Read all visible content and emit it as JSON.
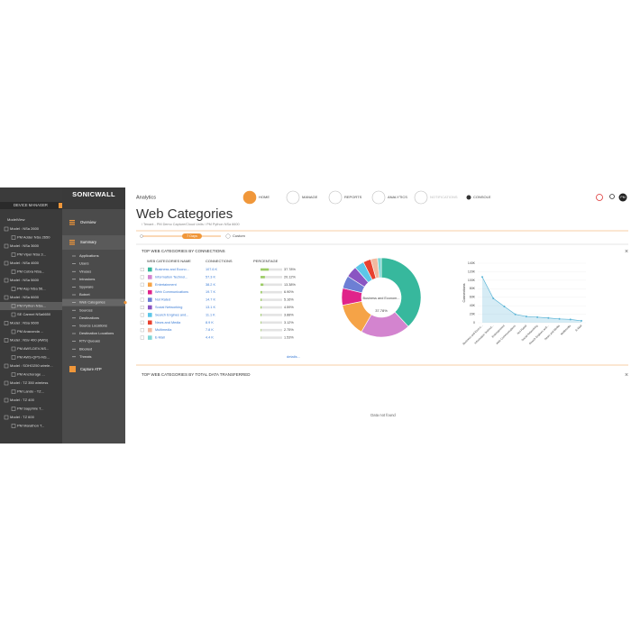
{
  "sidebar": {
    "header": "DEVICE MANAGER",
    "root": "ModelView",
    "devices": [
      "Model : NSa 2600",
      "PM Adder NSa 2650",
      "Model : NSa 3600",
      "PM Viper NSa 3...",
      "Model : NSa 4600",
      "PM Cobra NSa...",
      "Model : NSa 5600",
      "PM Asp NSa 56...",
      "Model : NSa 6600",
      "PM Python NSa...",
      "SE Carmel NSa6650",
      "Model : NSa 9600",
      "PM Anaconda ...",
      "Model : NSv 400 (AWS)",
      "PM AWS-DEV-NS...",
      "PM AWS-QPS-NS...",
      "Model : SOHO250 wirele...",
      "PM Anchorage ...",
      "Model : TZ 350 wireless",
      "PM Lando - TZ...",
      "Model : TZ 400",
      "PM Sapphire T...",
      "Model : TZ 600",
      "PM Marathon T..."
    ],
    "selected": 9
  },
  "nav": {
    "logo": "SONICWALL",
    "overview": "Overview",
    "summary": "Summary",
    "items": [
      "Applications",
      "Users",
      "Viruses",
      "Intrusions",
      "Spyware",
      "Botnet",
      "Web Categories",
      "Sources",
      "Destinations",
      "Source Locations",
      "Destination Locations",
      "RTV Queues",
      "Blocked",
      "Threats"
    ],
    "selected": 6,
    "capture": "Capture ATP"
  },
  "topbar": {
    "section": "Analytics",
    "tabs": [
      "HOME",
      "MANAGE",
      "REPORTS",
      "ANALYTICS",
      "NOTIFICATIONS",
      "CONSOLE"
    ],
    "user": "PM"
  },
  "page": {
    "title": "Web Categories",
    "breadcrumb": "/ Tenant - PM Demo Capture/Cloud Units / PM Python NSa 6600",
    "range": "7 Days",
    "custom": "Custom"
  },
  "panel1": {
    "title": "TOP WEB CATEGORIES BY CONNECTIONS",
    "columns": [
      "WEB CATEGORIES NAME",
      "CONNECTIONS",
      "PERCENTAGE"
    ],
    "connections": [
      "107.6 K",
      "57.3 K",
      "38.2 K",
      "19.7 K",
      "14.7 K",
      "13.1 K",
      "11.1 K",
      "8.9 K",
      "7.8 K",
      "4.4 K"
    ],
    "details": "details..."
  },
  "panel2": {
    "title": "TOP WEB CATEGORIES BY TOTAL DATA TRANSFERRED",
    "empty": "Data not found"
  },
  "chart_data": [
    {
      "type": "pie",
      "categories": [
        "Business and Econo...",
        "Information Technol...",
        "Entertainment",
        "Web Communications",
        "Not Rated",
        "Social Networking",
        "Search Engines and...",
        "News and Media",
        "Multimedia",
        "E-Mail"
      ],
      "values": [
        37.78,
        20.12,
        13.38,
        6.9,
        5.16,
        4.59,
        3.88,
        3.12,
        2.75,
        1.53
      ],
      "value_labels": [
        "37.78%",
        "20.12%",
        "13.38%",
        "6.90%",
        "5.16%",
        "4.59%",
        "3.88%",
        "3.12%",
        "2.75%",
        "1.53%"
      ],
      "colors": [
        "#37b89d",
        "#d384cf",
        "#f5a347",
        "#e0238a",
        "#6d7fd4",
        "#8a55c2",
        "#5cc6e8",
        "#e8412f",
        "#f2b9a0",
        "#7fd7d5"
      ],
      "center_label": "Business and Econom...",
      "center_value": "37.78%"
    },
    {
      "type": "line",
      "categories": [
        "Business and Econo...",
        "Information Technol...",
        "Entertainment",
        "Web Communications",
        "Not Rated",
        "Social Networking",
        "Search Engines and...",
        "News and Media",
        "Multimedia",
        "E-Mail"
      ],
      "values": [
        107600,
        57300,
        38200,
        19700,
        14700,
        13100,
        11100,
        8900,
        7800,
        4400
      ],
      "y_label": "Connections",
      "color": "#5ab4d6",
      "ylim": [
        0,
        140000
      ],
      "yticks": [
        0,
        {
          "value": 20000,
          "label": "20K"
        },
        {
          "value": 40000,
          "label": "40K"
        },
        {
          "value": 60000,
          "label": "60K"
        },
        {
          "value": 80000,
          "label": "80K"
        },
        {
          "value": 100000,
          "label": "100K"
        },
        {
          "value": 120000,
          "label": "120K"
        },
        {
          "value": 140000,
          "label": "140K"
        }
      ]
    }
  ]
}
